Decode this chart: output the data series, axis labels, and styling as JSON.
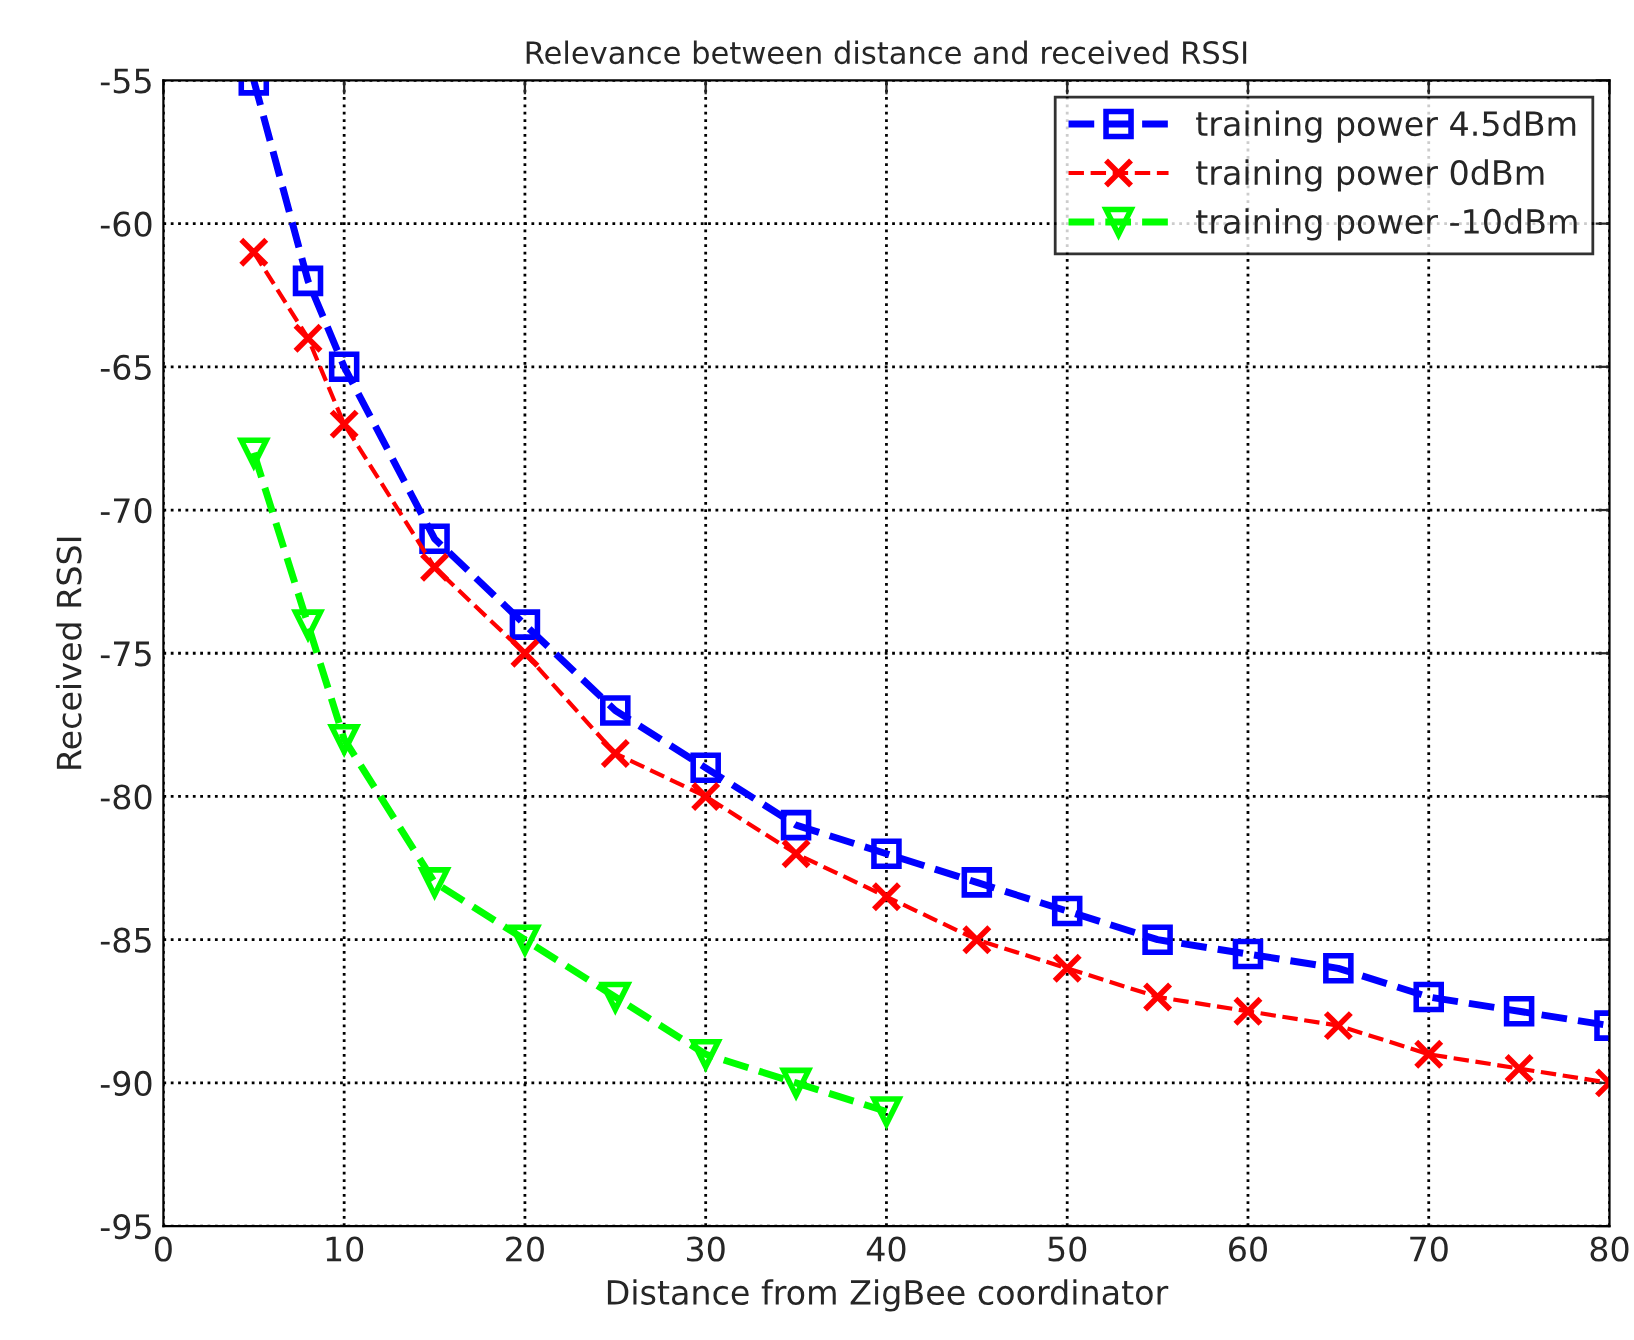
{
  "chart_data": {
    "type": "line",
    "title": "Relevance between distance and received RSSI",
    "xlabel": "Distance from ZigBee coordinator",
    "ylabel": "Received RSSI",
    "xlim": [
      0,
      80
    ],
    "xticks": [
      0,
      10,
      20,
      30,
      40,
      50,
      60,
      70,
      80
    ],
    "ylim": [
      -95,
      -55
    ],
    "yticks": [
      -95,
      -90,
      -85,
      -80,
      -75,
      -70,
      -65,
      -60,
      -55
    ],
    "grid": true,
    "legend": "top right",
    "line_style": "dashed",
    "series": [
      {
        "name": "training power 4.5dBm",
        "color": "#0000ff",
        "marker": "square",
        "x": [
          5,
          8,
          10,
          15,
          20,
          25,
          30,
          35,
          40,
          45,
          50,
          55,
          60,
          65,
          70,
          75,
          80
        ],
        "values": [
          -55,
          -62,
          -65,
          -71,
          -74,
          -77,
          -79,
          -81,
          -82,
          -83,
          -84,
          -85,
          -85.5,
          -86,
          -87,
          -87.5,
          -88
        ]
      },
      {
        "name": "training power 0dBm",
        "color": "#ff0000",
        "marker": "cross",
        "x": [
          5,
          8,
          10,
          15,
          20,
          25,
          30,
          35,
          40,
          45,
          50,
          55,
          60,
          65,
          70,
          75,
          80
        ],
        "values": [
          -61,
          -64,
          -67,
          -72,
          -75,
          -78.5,
          -80,
          -82,
          -83.5,
          -85,
          -86,
          -87,
          -87.5,
          -88,
          -89,
          -89.5,
          -90
        ]
      },
      {
        "name": "training power -10dBm",
        "color": "#00ff00",
        "marker": "triangle",
        "x": [
          5,
          8,
          10,
          15,
          20,
          25,
          30,
          35,
          40
        ],
        "values": [
          -68,
          -74,
          -78,
          -83,
          -85,
          -87,
          -89,
          -90,
          -91
        ]
      }
    ]
  }
}
